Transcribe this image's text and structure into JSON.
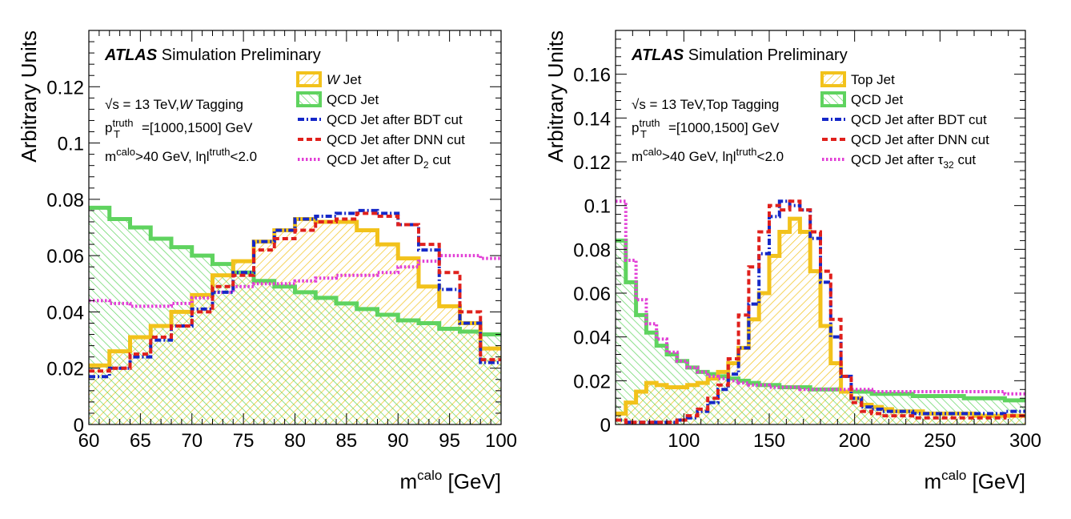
{
  "chart_data": [
    {
      "type": "line",
      "histogram": true,
      "title": "",
      "experiment": "ATLAS",
      "experiment_suffix": "Simulation Preliminary",
      "xlabel_main": "m",
      "xlabel_sup": "calo",
      "xlabel_unit": " [GeV]",
      "ylabel": "Arbitrary Units",
      "xlim": [
        60,
        100
      ],
      "ylim": [
        0,
        0.14
      ],
      "xticks": [
        60,
        65,
        70,
        75,
        80,
        85,
        90,
        95,
        100
      ],
      "xtick_labels": [
        "60",
        "65",
        "70",
        "75",
        "80",
        "85",
        "90",
        "95",
        "100"
      ],
      "yticks": [
        0,
        0.02,
        0.04,
        0.06,
        0.08,
        0.1,
        0.12
      ],
      "ytick_labels": [
        "0",
        "0.02",
        "0.04",
        "0.06",
        "0.08",
        "0.1",
        "0.12"
      ],
      "grid": false,
      "legend_position": "top-right",
      "annotation": {
        "sqrt_s": "√s = 13 TeV,",
        "tagging_italic": "W",
        "tagging_rest": " Tagging",
        "pt_main": "p",
        "pt_sub": "T",
        "pt_sup": "truth",
        "pt_rest": "=[1000,1500] GeV",
        "m_main": "m",
        "m_sup": "calo",
        "m_rest": ">40 GeV, lηl",
        "eta_sup": "truth",
        "eta_rest": "<2.0"
      },
      "legend": [
        {
          "main": "",
          "italic": "W",
          "rest": " Jet",
          "sub": "",
          "tail": ""
        },
        {
          "main": "QCD Jet",
          "italic": "",
          "rest": "",
          "sub": "",
          "tail": ""
        },
        {
          "main": "QCD Jet after BDT cut",
          "italic": "",
          "rest": "",
          "sub": "",
          "tail": ""
        },
        {
          "main": "QCD Jet after DNN cut",
          "italic": "",
          "rest": "",
          "sub": "",
          "tail": ""
        },
        {
          "main": "QCD Jet after D",
          "italic": "",
          "rest": "",
          "sub": "2",
          "tail": " cut"
        }
      ],
      "bin_edges": [
        60,
        62,
        64,
        66,
        68,
        70,
        72,
        74,
        76,
        78,
        80,
        82,
        84,
        86,
        88,
        90,
        92,
        94,
        96,
        98,
        100
      ],
      "series": [
        {
          "key": "signal",
          "color": "#f2c21b",
          "style": "solid",
          "fill": "hatch-yellow",
          "values": [
            0.021,
            0.026,
            0.031,
            0.035,
            0.04,
            0.046,
            0.053,
            0.058,
            0.065,
            0.069,
            0.073,
            0.072,
            0.072,
            0.069,
            0.064,
            0.059,
            0.049,
            0.042,
            0.036,
            0.027
          ]
        },
        {
          "key": "qcd",
          "color": "#5fd35f",
          "style": "solid",
          "fill": "hatch-green",
          "values": [
            0.077,
            0.073,
            0.07,
            0.066,
            0.063,
            0.06,
            0.057,
            0.054,
            0.051,
            0.049,
            0.047,
            0.045,
            0.043,
            0.041,
            0.039,
            0.037,
            0.036,
            0.034,
            0.033,
            0.032
          ]
        },
        {
          "key": "bdt",
          "color": "#1528c8",
          "style": "dashdot",
          "values": [
            0.017,
            0.02,
            0.024,
            0.03,
            0.035,
            0.041,
            0.047,
            0.054,
            0.065,
            0.069,
            0.073,
            0.074,
            0.075,
            0.076,
            0.075,
            0.071,
            0.062,
            0.048,
            0.036,
            0.022
          ]
        },
        {
          "key": "dnn",
          "color": "#e0201c",
          "style": "dashed",
          "values": [
            0.019,
            0.02,
            0.025,
            0.031,
            0.035,
            0.04,
            0.049,
            0.053,
            0.062,
            0.066,
            0.069,
            0.072,
            0.073,
            0.075,
            0.074,
            0.071,
            0.064,
            0.054,
            0.04,
            0.023
          ]
        },
        {
          "key": "shape",
          "color": "#e23ed6",
          "style": "dotted",
          "values": [
            0.044,
            0.043,
            0.042,
            0.042,
            0.043,
            0.045,
            0.047,
            0.049,
            0.05,
            0.05,
            0.051,
            0.052,
            0.053,
            0.053,
            0.054,
            0.056,
            0.058,
            0.06,
            0.06,
            0.059
          ]
        }
      ]
    },
    {
      "type": "line",
      "histogram": true,
      "title": "",
      "experiment": "ATLAS",
      "experiment_suffix": "Simulation Preliminary",
      "xlabel_main": "m",
      "xlabel_sup": "calo",
      "xlabel_unit": " [GeV]",
      "ylabel": "Arbitrary Units",
      "xlim": [
        60,
        300
      ],
      "ylim": [
        0,
        0.18
      ],
      "xticks": [
        100,
        150,
        200,
        250,
        300
      ],
      "xtick_labels": [
        "100",
        "150",
        "200",
        "250",
        "300"
      ],
      "yticks": [
        0,
        0.02,
        0.04,
        0.06,
        0.08,
        0.1,
        0.12,
        0.14,
        0.16
      ],
      "ytick_labels": [
        "0",
        "0.02",
        "0.04",
        "0.06",
        "0.08",
        "0.1",
        "0.12",
        "0.14",
        "0.16"
      ],
      "grid": false,
      "legend_position": "top-right",
      "annotation": {
        "sqrt_s": "√s = 13 TeV,",
        "tagging_italic": "",
        "tagging_rest": "Top Tagging",
        "pt_main": "p",
        "pt_sub": "T",
        "pt_sup": "truth",
        "pt_rest": "=[1000,1500] GeV",
        "m_main": "m",
        "m_sup": "calo",
        "m_rest": ">40 GeV, lηl",
        "eta_sup": "truth",
        "eta_rest": "<2.0"
      },
      "legend": [
        {
          "main": "Top Jet",
          "italic": "",
          "rest": "",
          "sub": "",
          "tail": ""
        },
        {
          "main": "QCD Jet",
          "italic": "",
          "rest": "",
          "sub": "",
          "tail": ""
        },
        {
          "main": "QCD Jet after BDT cut",
          "italic": "",
          "rest": "",
          "sub": "",
          "tail": ""
        },
        {
          "main": "QCD Jet after DNN cut",
          "italic": "",
          "rest": "",
          "sub": "",
          "tail": ""
        },
        {
          "main": "QCD Jet after τ",
          "italic": "",
          "rest": "",
          "sub": "32",
          "tail": " cut"
        }
      ],
      "bin_edges": [
        60,
        66,
        72,
        78,
        84,
        90,
        96,
        102,
        108,
        114,
        120,
        126,
        132,
        138,
        144,
        150,
        156,
        162,
        168,
        174,
        180,
        186,
        192,
        198,
        204,
        210,
        216,
        222,
        228,
        234,
        240,
        246,
        252,
        258,
        264,
        270,
        276,
        282,
        288,
        294,
        300
      ],
      "series": [
        {
          "key": "signal",
          "color": "#f2c21b",
          "style": "solid",
          "fill": "hatch-yellow",
          "values": [
            0.005,
            0.01,
            0.015,
            0.019,
            0.018,
            0.017,
            0.017,
            0.018,
            0.019,
            0.021,
            0.024,
            0.028,
            0.035,
            0.048,
            0.06,
            0.077,
            0.088,
            0.094,
            0.088,
            0.07,
            0.045,
            0.028,
            0.015,
            0.012,
            0.009,
            0.008,
            0.007,
            0.006,
            0.006,
            0.006,
            0.005,
            0.005,
            0.005,
            0.005,
            0.005,
            0.004,
            0.004,
            0.004,
            0.004,
            0.004
          ]
        },
        {
          "key": "qcd",
          "color": "#5fd35f",
          "style": "solid",
          "fill": "hatch-green",
          "values": [
            0.084,
            0.065,
            0.05,
            0.042,
            0.036,
            0.032,
            0.029,
            0.026,
            0.024,
            0.023,
            0.022,
            0.021,
            0.02,
            0.019,
            0.018,
            0.018,
            0.017,
            0.017,
            0.017,
            0.016,
            0.016,
            0.016,
            0.015,
            0.015,
            0.015,
            0.014,
            0.014,
            0.014,
            0.014,
            0.013,
            0.013,
            0.013,
            0.013,
            0.013,
            0.012,
            0.012,
            0.012,
            0.012,
            0.011,
            0.011
          ]
        },
        {
          "key": "bdt",
          "color": "#1528c8",
          "style": "dashdot",
          "values": [
            0.002,
            0.001,
            0.001,
            0.001,
            0.001,
            0.001,
            0.002,
            0.003,
            0.006,
            0.01,
            0.016,
            0.023,
            0.035,
            0.055,
            0.078,
            0.095,
            0.102,
            0.1,
            0.098,
            0.085,
            0.065,
            0.04,
            0.022,
            0.012,
            0.008,
            0.007,
            0.006,
            0.006,
            0.006,
            0.005,
            0.005,
            0.005,
            0.005,
            0.005,
            0.005,
            0.005,
            0.005,
            0.005,
            0.006,
            0.006
          ]
        },
        {
          "key": "dnn",
          "color": "#e0201c",
          "style": "dashed",
          "values": [
            0.002,
            0.001,
            0.001,
            0.001,
            0.001,
            0.001,
            0.002,
            0.004,
            0.007,
            0.012,
            0.018,
            0.03,
            0.05,
            0.072,
            0.088,
            0.1,
            0.098,
            0.102,
            0.098,
            0.088,
            0.07,
            0.048,
            0.022,
            0.01,
            0.006,
            0.005,
            0.004,
            0.004,
            0.004,
            0.003,
            0.003,
            0.003,
            0.003,
            0.003,
            0.003,
            0.003,
            0.003,
            0.003,
            0.004,
            0.004
          ]
        },
        {
          "key": "shape",
          "color": "#e23ed6",
          "style": "dotted",
          "values": [
            0.102,
            0.075,
            0.057,
            0.046,
            0.039,
            0.033,
            0.029,
            0.026,
            0.024,
            0.022,
            0.021,
            0.02,
            0.019,
            0.018,
            0.018,
            0.017,
            0.017,
            0.017,
            0.016,
            0.016,
            0.016,
            0.016,
            0.016,
            0.016,
            0.016,
            0.015,
            0.015,
            0.015,
            0.015,
            0.015,
            0.015,
            0.015,
            0.015,
            0.015,
            0.015,
            0.015,
            0.015,
            0.015,
            0.014,
            0.014
          ]
        }
      ]
    }
  ]
}
